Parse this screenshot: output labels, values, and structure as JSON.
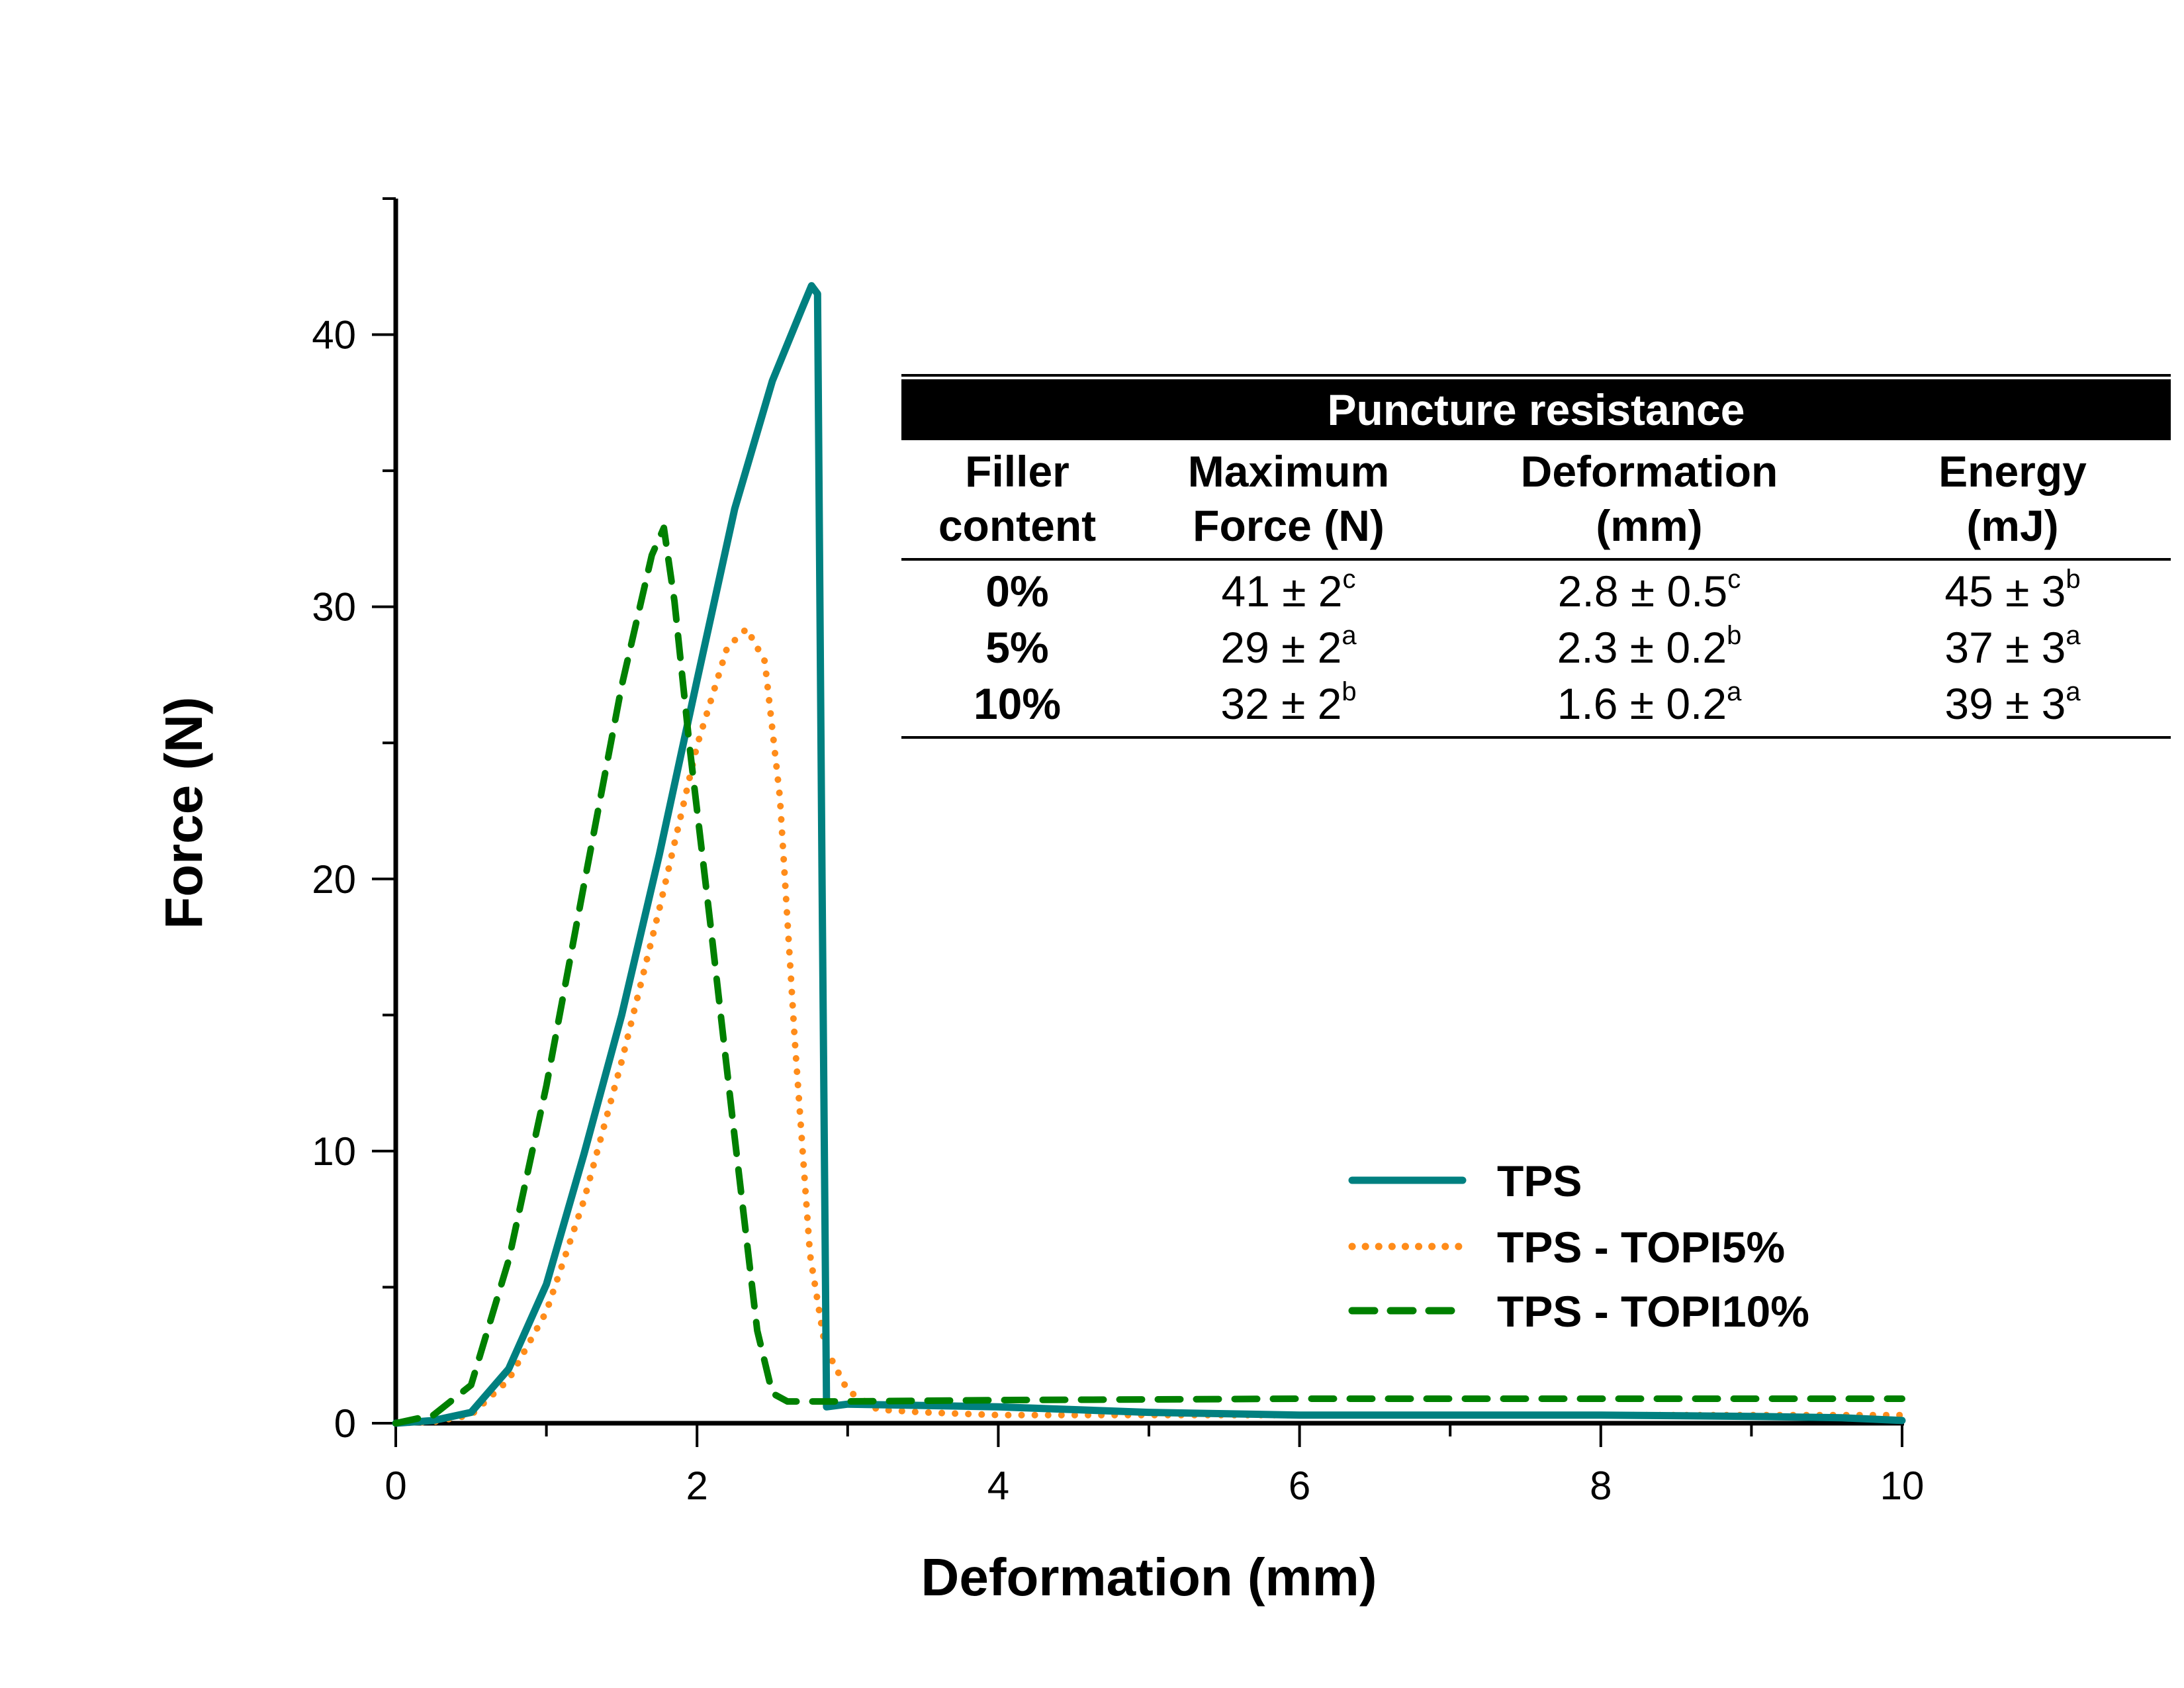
{
  "chart_data": {
    "type": "line",
    "title": "",
    "xlabel": "Deformation (mm)",
    "ylabel": "Force (N)",
    "xlim": [
      0,
      10
    ],
    "ylim": [
      0,
      45
    ],
    "x_major_ticks": [
      0,
      2,
      4,
      6,
      8,
      10
    ],
    "x_minor_ticks": [
      1,
      3,
      5,
      7,
      9
    ],
    "y_major_ticks": [
      0,
      10,
      20,
      30,
      40
    ],
    "y_minor_ticks": [
      5,
      15,
      25,
      35,
      45
    ],
    "x_tick_labels": [
      "0",
      "2",
      "4",
      "6",
      "8",
      "10"
    ],
    "y_tick_labels": [
      "0",
      "10",
      "20",
      "30",
      "40"
    ],
    "grid": false,
    "legend_position": "bottom-right",
    "series": [
      {
        "name": "TPS",
        "color": "#008080",
        "style": "solid",
        "x": [
          0,
          0.25,
          0.5,
          0.75,
          1.0,
          1.25,
          1.5,
          1.75,
          2.0,
          2.25,
          2.5,
          2.7,
          2.76,
          2.8,
          2.83,
          2.86,
          3.0,
          4.0,
          5.0,
          6.0,
          7.0,
          8.0,
          9.0,
          9.6,
          10.0
        ],
        "y": [
          0,
          0.1,
          0.4,
          2.0,
          5.1,
          9.9,
          15.0,
          20.9,
          27.3,
          33.6,
          38.3,
          41.0,
          41.8,
          41.5,
          20.0,
          0.6,
          0.7,
          0.6,
          0.4,
          0.3,
          0.3,
          0.3,
          0.25,
          0.2,
          0.1
        ]
      },
      {
        "name": "TPS - TOPI5%",
        "color": "#FF8C1A",
        "style": "dotted",
        "x": [
          0,
          0.25,
          0.5,
          0.75,
          1.0,
          1.25,
          1.5,
          1.75,
          2.0,
          2.2,
          2.33,
          2.45,
          2.55,
          2.65,
          2.75,
          2.85,
          3.0,
          3.2,
          3.5,
          4.0,
          6.0,
          8.0,
          10.0
        ],
        "y": [
          0,
          0.05,
          0.3,
          1.6,
          4.1,
          8.2,
          13.3,
          18.9,
          24.9,
          28.5,
          29.2,
          28.0,
          23.0,
          14.0,
          6.2,
          2.8,
          1.2,
          0.5,
          0.4,
          0.3,
          0.3,
          0.3,
          0.3
        ]
      },
      {
        "name": "TPS - TOPI10%",
        "color": "#008000",
        "style": "dashed",
        "x": [
          0,
          0.25,
          0.5,
          0.75,
          1.0,
          1.25,
          1.5,
          1.7,
          1.78,
          1.85,
          1.95,
          2.1,
          2.25,
          2.4,
          2.5,
          2.6,
          3.0,
          4.0,
          6.0,
          8.0,
          10.0
        ],
        "y": [
          0,
          0.3,
          1.4,
          6.0,
          12.4,
          19.8,
          27.1,
          31.9,
          32.9,
          30.2,
          24.9,
          17.8,
          10.5,
          3.4,
          1.1,
          0.8,
          0.8,
          0.85,
          0.9,
          0.9,
          0.9
        ]
      }
    ]
  },
  "table": {
    "title": "Puncture resistance",
    "headers": [
      [
        "Filler",
        "content"
      ],
      [
        "Maximum",
        "Force (N)"
      ],
      [
        "Deformation",
        "(mm)"
      ],
      [
        "Energy",
        "(mJ)"
      ]
    ],
    "rows": [
      {
        "filler": "0%",
        "force": "41 ± 2",
        "force_sup": "c",
        "deformation": "2.8 ± 0.5",
        "deformation_sup": "c",
        "energy": "45 ± 3",
        "energy_sup": "b"
      },
      {
        "filler": "5%",
        "force": "29 ± 2",
        "force_sup": "a",
        "deformation": "2.3 ± 0.2",
        "deformation_sup": "b",
        "energy": "37 ± 3",
        "energy_sup": "a"
      },
      {
        "filler": "10%",
        "force": "32 ± 2",
        "force_sup": "b",
        "deformation": "1.6 ± 0.2",
        "deformation_sup": "a",
        "energy": "39 ± 3",
        "energy_sup": "a"
      }
    ]
  }
}
